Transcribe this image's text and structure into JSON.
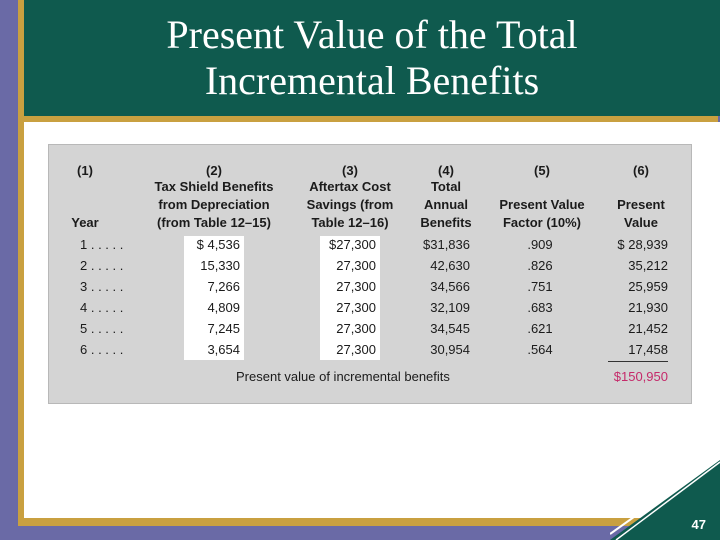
{
  "slide": {
    "title_line1": "Present Value of the Total",
    "title_line2": "Incremental Benefits",
    "page_number": "47"
  },
  "table": {
    "col_numbers": [
      "(1)",
      "(2)",
      "(3)",
      "(4)",
      "(5)",
      "(6)"
    ],
    "headers": {
      "c1": [
        "Year"
      ],
      "c2": [
        "Tax Shield Benefits",
        "from Depreciation",
        "(from Table 12–15)"
      ],
      "c3": [
        "Aftertax Cost",
        "Savings (from",
        "Table 12–16)"
      ],
      "c4": [
        "Total",
        "Annual",
        "Benefits"
      ],
      "c5": [
        "Present Value",
        "Factor (10%)"
      ],
      "c6": [
        "Present",
        "Value"
      ]
    },
    "rows": [
      {
        "year": "1 . . . . .",
        "tax_shield": "$  4,536",
        "savings": "$27,300",
        "total": "$31,836",
        "factor": ".909",
        "pv": "$  28,939"
      },
      {
        "year": "2 . . . . .",
        "tax_shield": "15,330",
        "savings": "27,300",
        "total": "42,630",
        "factor": ".826",
        "pv": "35,212"
      },
      {
        "year": "3 . . . . .",
        "tax_shield": "7,266",
        "savings": "27,300",
        "total": "34,566",
        "factor": ".751",
        "pv": "25,959"
      },
      {
        "year": "4 . . . . .",
        "tax_shield": "4,809",
        "savings": "27,300",
        "total": "32,109",
        "factor": ".683",
        "pv": "21,930"
      },
      {
        "year": "5 . . . . .",
        "tax_shield": "7,245",
        "savings": "27,300",
        "total": "34,545",
        "factor": ".621",
        "pv": "21,452"
      },
      {
        "year": "6 . . . . .",
        "tax_shield": "3,654",
        "savings": "27,300",
        "total": "30,954",
        "factor": ".564",
        "pv": "17,458"
      }
    ],
    "total_label": "Present value of incremental benefits",
    "total_value": "$150,950",
    "accent_color": "#c52a6a"
  }
}
